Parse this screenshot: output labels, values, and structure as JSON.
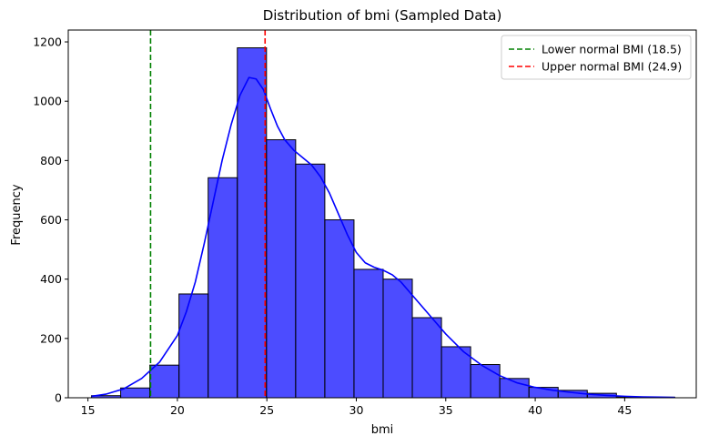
{
  "chart_data": {
    "type": "bar",
    "subtype": "histogram",
    "title": "Distribution of bmi (Sampled Data)",
    "xlabel": "bmi",
    "ylabel": "Frequency",
    "xlim": [
      13.9,
      49.0
    ],
    "ylim": [
      0,
      1240
    ],
    "xticks": [
      15,
      20,
      25,
      30,
      35,
      40,
      45
    ],
    "yticks": [
      0,
      200,
      400,
      600,
      800,
      1000,
      1200
    ],
    "bin_start": 15.2,
    "bin_width": 1.63,
    "counts": [
      7,
      33,
      110,
      350,
      742,
      1180,
      870,
      788,
      600,
      433,
      400,
      270,
      172,
      112,
      65,
      35,
      25,
      15,
      3,
      2
    ],
    "bar_color": "#0000ff",
    "bar_edge_color": "#000000",
    "kde_color": "#0000ff",
    "kde": {
      "x": [
        15.2,
        16.0,
        17.0,
        18.0,
        19.0,
        20.0,
        20.5,
        21.0,
        21.5,
        22.0,
        22.5,
        23.0,
        23.5,
        24.0,
        24.4,
        24.8,
        25.2,
        25.6,
        26.0,
        26.5,
        27.0,
        27.5,
        28.0,
        28.5,
        29.0,
        29.5,
        30.0,
        30.5,
        31.0,
        31.5,
        32.0,
        32.5,
        33.0,
        34.0,
        35.0,
        36.0,
        37.0,
        38.0,
        39.0,
        40.0,
        41.0,
        42.0,
        43.0,
        44.0,
        45.0,
        46.0,
        47.0,
        47.8
      ],
      "y": [
        5,
        12,
        30,
        65,
        120,
        210,
        290,
        390,
        520,
        660,
        800,
        920,
        1020,
        1080,
        1075,
        1040,
        975,
        915,
        870,
        835,
        810,
        785,
        745,
        690,
        620,
        550,
        490,
        455,
        440,
        430,
        415,
        390,
        355,
        285,
        215,
        155,
        110,
        75,
        50,
        35,
        25,
        18,
        12,
        8,
        5,
        3,
        2,
        1
      ]
    },
    "vlines": [
      {
        "x": 18.5,
        "color": "#008000",
        "style": "dashed",
        "label": "Lower normal BMI (18.5)"
      },
      {
        "x": 24.9,
        "color": "#ff0000",
        "style": "dashed",
        "label": "Upper normal BMI (24.9)"
      }
    ],
    "legend": "top-right",
    "grid": false
  }
}
